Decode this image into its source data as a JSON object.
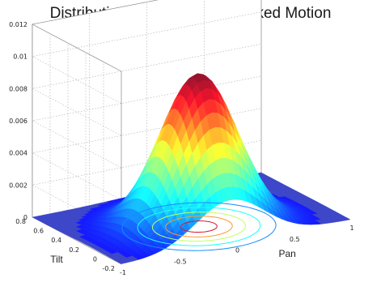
{
  "chart_data": {
    "type": "surface",
    "title": "Distribution of Pan/Tilt for Tracked Motion",
    "xlabel": "Pan",
    "ylabel": "Tilt",
    "zlabel": "",
    "x_range": [
      -1,
      1
    ],
    "y_range": [
      -0.2,
      0.8
    ],
    "z_range": [
      0,
      0.012
    ],
    "x_ticks": [
      "-1",
      "-0.5",
      "0",
      "0.5",
      "1"
    ],
    "y_ticks": [
      "-0.2",
      "0",
      "0.2",
      "0.4",
      "0.6",
      "0.8"
    ],
    "z_ticks": [
      "0",
      "0.002",
      "0.004",
      "0.006",
      "0.008",
      "0.01",
      "0.012"
    ],
    "grid": true,
    "colormap": "jet",
    "floor_contours": true,
    "peak": {
      "pan": -0.05,
      "tilt": 0.15,
      "value": 0.0095
    },
    "spread": {
      "pan_sigma": 0.3,
      "tilt_sigma": 0.22
    },
    "colors": {
      "floor": "#3c46c8",
      "wall": "#ffffff",
      "grid": "#9a9a9a"
    }
  }
}
